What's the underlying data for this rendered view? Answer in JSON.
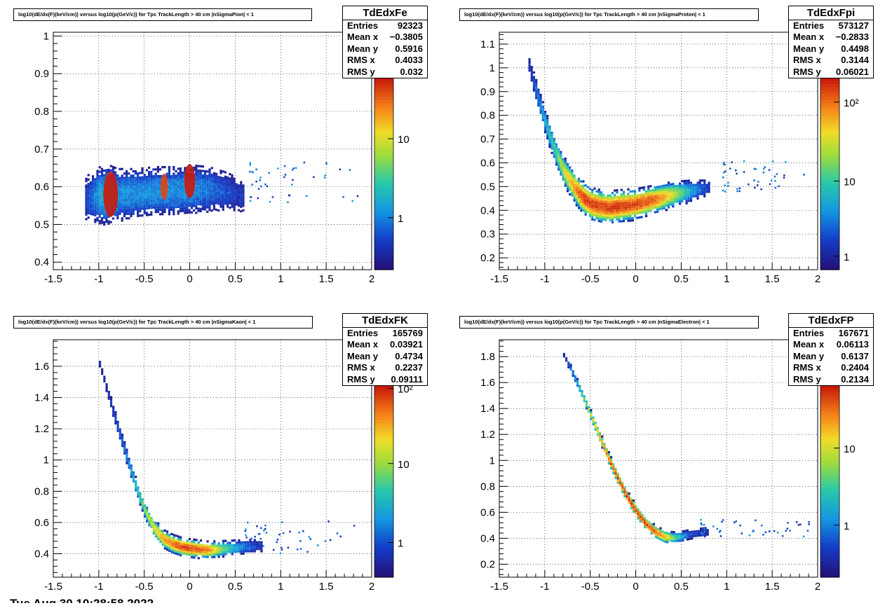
{
  "footer": "Tue Aug 30 10:28:58 2022",
  "colors": {
    "frame": "#000000",
    "grid": "#888888"
  },
  "chart_data": [
    {
      "type": "heatmap",
      "title": "log10(dE/dx(F)(keV/cm)) versus log10(p(GeV/c)) for Tpc TrackLength > 40 cm |nSigmaPion| < 1",
      "name": "TdEdxFe",
      "stats": [
        [
          "Entries",
          "92323"
        ],
        [
          "Mean x",
          "−0.3805"
        ],
        [
          "Mean y",
          "0.5916"
        ],
        [
          "RMS x",
          "0.4033"
        ],
        [
          "RMS y",
          "0.032"
        ]
      ],
      "xlim": [
        -1.5,
        2
      ],
      "ylim": [
        0.38,
        1.01
      ],
      "xticks": [
        "-1.5",
        "-1",
        "-0.5",
        "0",
        "0.5",
        "1",
        "1.5",
        "2"
      ],
      "yticks": [
        "0.4",
        "0.5",
        "0.6",
        "0.7",
        "0.8",
        "0.9",
        "1"
      ],
      "zticks": [
        "1",
        "10"
      ],
      "bands": [
        {
          "x": [
            -1.15,
            -1.0,
            -0.9,
            -0.8,
            -0.6,
            -0.4,
            -0.2,
            0,
            0.2,
            0.4,
            0.6
          ],
          "y": [
            0.57,
            0.58,
            0.58,
            0.58,
            0.585,
            0.59,
            0.59,
            0.595,
            0.595,
            0.59,
            0.575
          ],
          "w": [
            0.06,
            0.075,
            0.08,
            0.07,
            0.065,
            0.065,
            0.065,
            0.065,
            0.06,
            0.05,
            0.04
          ],
          "d": [
            0.15,
            0.35,
            0.4,
            0.3,
            0.3,
            0.3,
            0.3,
            0.3,
            0.25,
            0.18,
            0.1
          ]
        }
      ],
      "hot": [
        {
          "x": -0.87,
          "y": 0.58,
          "rx": 0.08,
          "ry": 0.06,
          "c": "#c91a0c"
        },
        {
          "x": -0.28,
          "y": 0.6,
          "rx": 0.04,
          "ry": 0.035,
          "c": "#e04410"
        },
        {
          "x": 0.0,
          "y": 0.615,
          "rx": 0.06,
          "ry": 0.045,
          "c": "#c91a0c"
        }
      ],
      "scatter": {
        "x0": 0.65,
        "x1": 1.85,
        "y0": 0.56,
        "y1": 0.67
      }
    },
    {
      "type": "heatmap",
      "title": "log10(dE/dx(F)(keV/cm)) versus log10(p(GeV/c)) for Tpc TrackLength > 40 cm |nSigmaProton| < 1",
      "name": "TdEdxFpi",
      "stats": [
        [
          "Entries",
          "573127"
        ],
        [
          "Mean x",
          "−0.2833"
        ],
        [
          "Mean y",
          "0.4498"
        ],
        [
          "RMS x",
          "0.3144"
        ],
        [
          "RMS y",
          "0.06021"
        ]
      ],
      "xlim": [
        -1.5,
        2
      ],
      "ylim": [
        0.15,
        1.15
      ],
      "xticks": [
        "-1.5",
        "-1",
        "-0.5",
        "0",
        "0.5",
        "1",
        "1.5",
        "2"
      ],
      "yticks": [
        "0.2",
        "0.3",
        "0.4",
        "0.5",
        "0.6",
        "0.7",
        "0.8",
        "0.9",
        "1",
        "1.1"
      ],
      "zticks": [
        "1",
        "10",
        "10²"
      ],
      "bands": [
        {
          "x": [
            -1.18,
            -1.1,
            -1.0,
            -0.9,
            -0.8,
            -0.7,
            -0.6,
            -0.5,
            -0.4,
            -0.3,
            -0.2,
            0,
            0.2,
            0.4,
            0.6,
            0.8
          ],
          "y": [
            1.02,
            0.9,
            0.77,
            0.66,
            0.57,
            0.51,
            0.46,
            0.43,
            0.42,
            0.415,
            0.42,
            0.43,
            0.45,
            0.47,
            0.485,
            0.5
          ],
          "w": [
            0.03,
            0.045,
            0.05,
            0.055,
            0.06,
            0.065,
            0.07,
            0.07,
            0.07,
            0.07,
            0.07,
            0.065,
            0.06,
            0.055,
            0.045,
            0.03
          ],
          "d": [
            0.1,
            0.25,
            0.4,
            0.5,
            0.7,
            0.85,
            1,
            1,
            1,
            1,
            1,
            1,
            0.95,
            0.7,
            0.35,
            0.12
          ]
        }
      ],
      "hot": [],
      "scatter": {
        "x0": 0.95,
        "x1": 1.85,
        "y0": 0.48,
        "y1": 0.62
      }
    },
    {
      "type": "heatmap",
      "title": "log10(dE/dx(F)(keV/cm)) versus log10(p(GeV/c)) for Tpc TrackLength > 40 cm |nSigmaKaon| < 1",
      "name": "TdEdxFK",
      "stats": [
        [
          "Entries",
          "165769"
        ],
        [
          "Mean x",
          "0.03921"
        ],
        [
          "Mean y",
          "0.4734"
        ],
        [
          "RMS x",
          "0.2237"
        ],
        [
          "RMS y",
          "0.09111"
        ]
      ],
      "xlim": [
        -1.5,
        2
      ],
      "ylim": [
        0.25,
        1.77
      ],
      "xticks": [
        "-1.5",
        "-1",
        "-0.5",
        "0",
        "0.5",
        "1",
        "1.5",
        "2"
      ],
      "yticks": [
        "0.4",
        "0.6",
        "0.8",
        "1",
        "1.2",
        "1.4",
        "1.6"
      ],
      "zticks": [
        "1",
        "10",
        "10²"
      ],
      "bands": [
        {
          "x": [
            -1.0,
            -0.9,
            -0.8,
            -0.7,
            -0.6,
            -0.5,
            -0.4,
            -0.3,
            -0.2,
            -0.1,
            0,
            0.2,
            0.4,
            0.6,
            0.8
          ],
          "y": [
            1.62,
            1.42,
            1.22,
            1.02,
            0.84,
            0.68,
            0.57,
            0.5,
            0.47,
            0.45,
            0.44,
            0.43,
            0.44,
            0.45,
            0.46
          ],
          "w": [
            0.03,
            0.035,
            0.04,
            0.045,
            0.05,
            0.055,
            0.06,
            0.06,
            0.06,
            0.06,
            0.06,
            0.055,
            0.05,
            0.045,
            0.035
          ],
          "d": [
            0.08,
            0.12,
            0.2,
            0.3,
            0.45,
            0.6,
            0.75,
            0.85,
            0.95,
            1,
            1,
            0.9,
            0.5,
            0.25,
            0.1
          ]
        }
      ],
      "hot": [],
      "scatter": {
        "x0": 0.6,
        "x1": 1.8,
        "y0": 0.4,
        "y1": 0.62
      }
    },
    {
      "type": "heatmap",
      "title": "log10(dE/dx(F)(keV/cm)) versus log10(p(GeV/c)) for Tpc TrackLength > 40 cm |nSigmaElectron| < 1",
      "name": "TdEdxFP",
      "stats": [
        [
          "Entries",
          "167671"
        ],
        [
          "Mean x",
          "0.06113"
        ],
        [
          "Mean y",
          "0.6137"
        ],
        [
          "RMS x",
          "0.2404"
        ],
        [
          "RMS y",
          "0.2134"
        ]
      ],
      "xlim": [
        -1.5,
        2
      ],
      "ylim": [
        0.1,
        1.93
      ],
      "xticks": [
        "-1.5",
        "-1",
        "-0.5",
        "0",
        "0.5",
        "1",
        "1.5",
        "2"
      ],
      "yticks": [
        "0.2",
        "0.4",
        "0.6",
        "0.8",
        "1",
        "1.2",
        "1.4",
        "1.6",
        "1.8"
      ],
      "zticks": [
        "1",
        "10"
      ],
      "bands": [
        {
          "x": [
            -0.8,
            -0.7,
            -0.6,
            -0.5,
            -0.4,
            -0.3,
            -0.2,
            -0.1,
            0,
            0.1,
            0.2,
            0.3,
            0.4,
            0.5,
            0.6,
            0.8
          ],
          "y": [
            1.82,
            1.68,
            1.52,
            1.35,
            1.18,
            1.01,
            0.86,
            0.72,
            0.61,
            0.52,
            0.46,
            0.42,
            0.41,
            0.42,
            0.44,
            0.46
          ],
          "w": [
            0.025,
            0.03,
            0.035,
            0.04,
            0.045,
            0.05,
            0.05,
            0.05,
            0.05,
            0.05,
            0.05,
            0.05,
            0.045,
            0.04,
            0.035,
            0.03
          ],
          "d": [
            0.1,
            0.3,
            0.55,
            0.7,
            0.85,
            0.95,
            1,
            1,
            1,
            1,
            0.95,
            0.85,
            0.6,
            0.35,
            0.18,
            0.08
          ]
        }
      ],
      "hot": [],
      "scatter": {
        "x0": 0.7,
        "x1": 1.9,
        "y0": 0.42,
        "y1": 0.55
      }
    }
  ]
}
